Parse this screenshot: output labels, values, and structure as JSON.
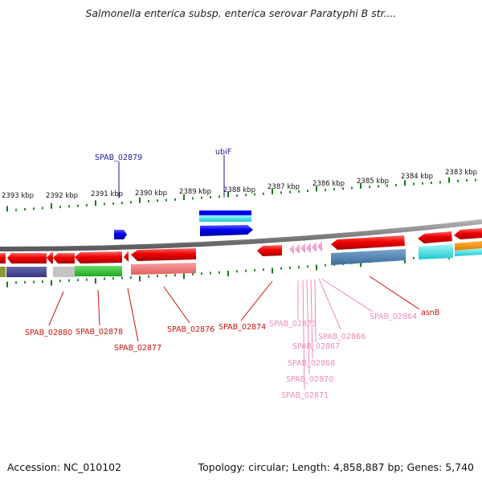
{
  "header": {
    "title": "Salmonella enterica subsp. enterica serovar Paratyphi B str...."
  },
  "footer": {
    "accession": "Accession: NC_010102",
    "summary": "Topology: circular; Length: 4,858,887 bp; Genes: 5,740"
  },
  "ruler": {
    "ticks": [
      "2393 kbp",
      "2392 kbp",
      "2391 kbp",
      "2390 kbp",
      "2389 kbp",
      "2388 kbp",
      "2387 kbp",
      "2386 kbp",
      "2385 kbp",
      "2384 kbp",
      "2383 kbp"
    ]
  },
  "genes": {
    "forward_labels": [
      "SPAB_02879",
      "ubiF"
    ],
    "reverse_labels": [
      "SPAB_02880",
      "SPAB_02878",
      "SPAB_02877",
      "SPAB_02876",
      "SPAB_02874",
      "SPAB_02873",
      "SPAB_02866",
      "SPAB_02867",
      "SPAB_02868",
      "SPAB_02870",
      "SPAB_02871",
      "SPAB_02864",
      "asnB"
    ]
  },
  "colors": {
    "forward_gene": "#0000ee",
    "reverse_gene": "#ee0000",
    "pseudo_gene": "#f29bc3",
    "backbone": "#808080",
    "tick": "#1a7a1a",
    "label_blue": "#1a1aa0",
    "label_red": "#cc1111",
    "label_pink": "#ee88bb"
  }
}
